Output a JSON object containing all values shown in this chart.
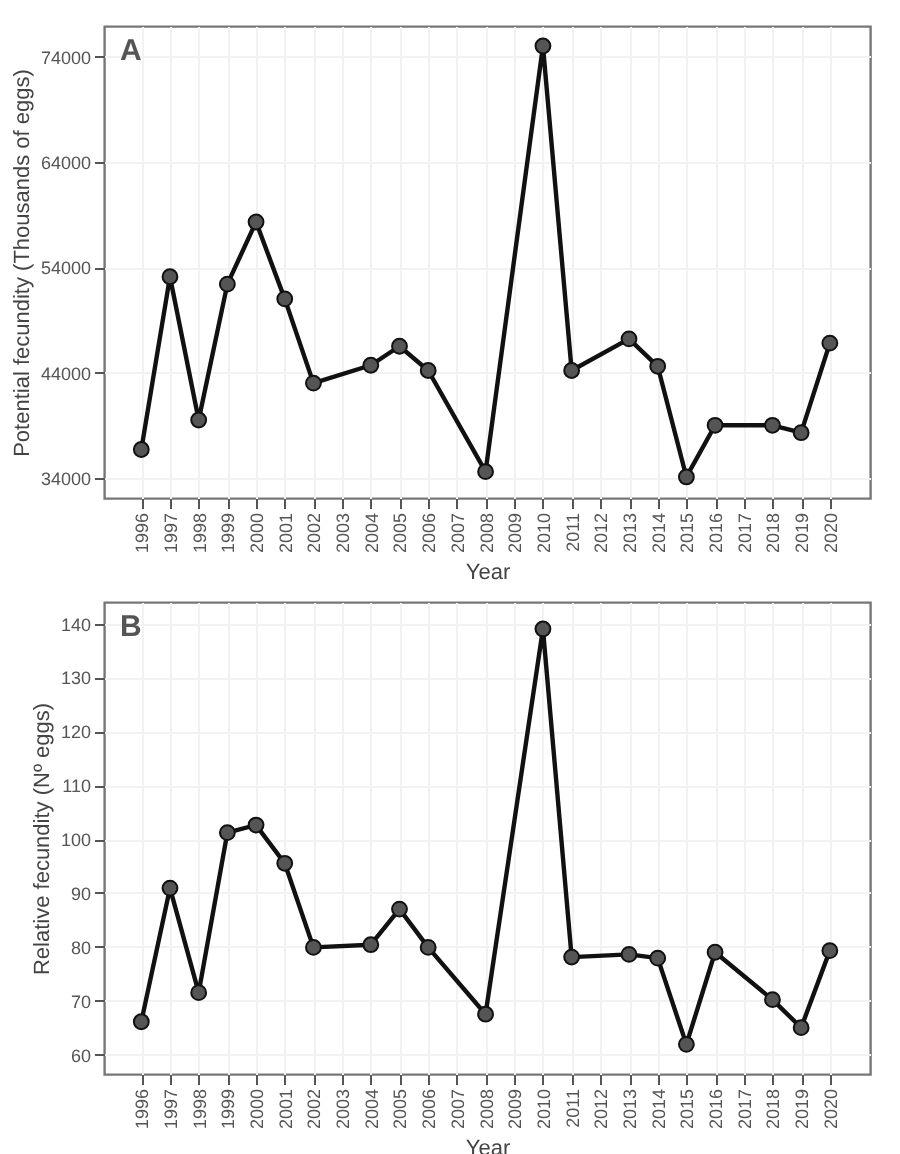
{
  "chart_data": [
    {
      "type": "line",
      "xlabel": "Year",
      "ylabel": "Potential fecundity (Thousands of eggs)",
      "annotations": [
        "A"
      ],
      "x": [
        1996,
        1997,
        1998,
        1999,
        2000,
        2001,
        2002,
        2004,
        2005,
        2006,
        2008,
        2010,
        2011,
        2013,
        2014,
        2015,
        2016,
        2018,
        2019,
        2020
      ],
      "series": [
        {
          "color": "#111111",
          "values": [
            36700,
            53100,
            39500,
            52400,
            58300,
            51000,
            43000,
            44700,
            46500,
            44200,
            34600,
            75000,
            44200,
            47200,
            44600,
            34100,
            39000,
            39000,
            38300,
            46800
          ]
        }
      ],
      "xlim": [
        1994.7,
        2021.4
      ],
      "xticks": [
        1996,
        1997,
        1998,
        1999,
        2000,
        2001,
        2002,
        2003,
        2004,
        2005,
        2006,
        2007,
        2008,
        2009,
        2010,
        2011,
        2012,
        2013,
        2014,
        2015,
        2016,
        2017,
        2018,
        2019,
        2020
      ],
      "ylim": [
        32100,
        76900
      ],
      "yticks": [
        34000,
        44000,
        54000,
        64000,
        74000
      ],
      "grid": true,
      "marker": "circle",
      "line_style": "solid"
    },
    {
      "type": "line",
      "xlabel": "Year",
      "ylabel": "Relative fecundity (Nº eggs)",
      "annotations": [
        "B"
      ],
      "x": [
        1996,
        1997,
        1998,
        1999,
        2000,
        2001,
        2002,
        2004,
        2005,
        2006,
        2008,
        2010,
        2011,
        2013,
        2014,
        2015,
        2016,
        2018,
        2019,
        2020
      ],
      "series": [
        {
          "color": "#111111",
          "values": [
            66.1,
            90.9,
            71.5,
            101.2,
            102.6,
            95.5,
            79.9,
            80.4,
            87.0,
            79.9,
            67.5,
            139.0,
            78.1,
            78.6,
            77.9,
            61.9,
            79.0,
            70.2,
            65.0,
            79.3
          ]
        }
      ],
      "xlim": [
        1994.7,
        2021.4
      ],
      "xticks": [
        1996,
        1997,
        1998,
        1999,
        2000,
        2001,
        2002,
        2003,
        2004,
        2005,
        2006,
        2007,
        2008,
        2009,
        2010,
        2011,
        2012,
        2013,
        2014,
        2015,
        2016,
        2017,
        2018,
        2019,
        2020
      ],
      "ylim": [
        56.4,
        144
      ],
      "yticks": [
        60,
        70,
        80,
        90,
        100,
        110,
        120,
        130,
        140
      ],
      "grid": true,
      "marker": "circle",
      "line_style": "solid"
    }
  ]
}
